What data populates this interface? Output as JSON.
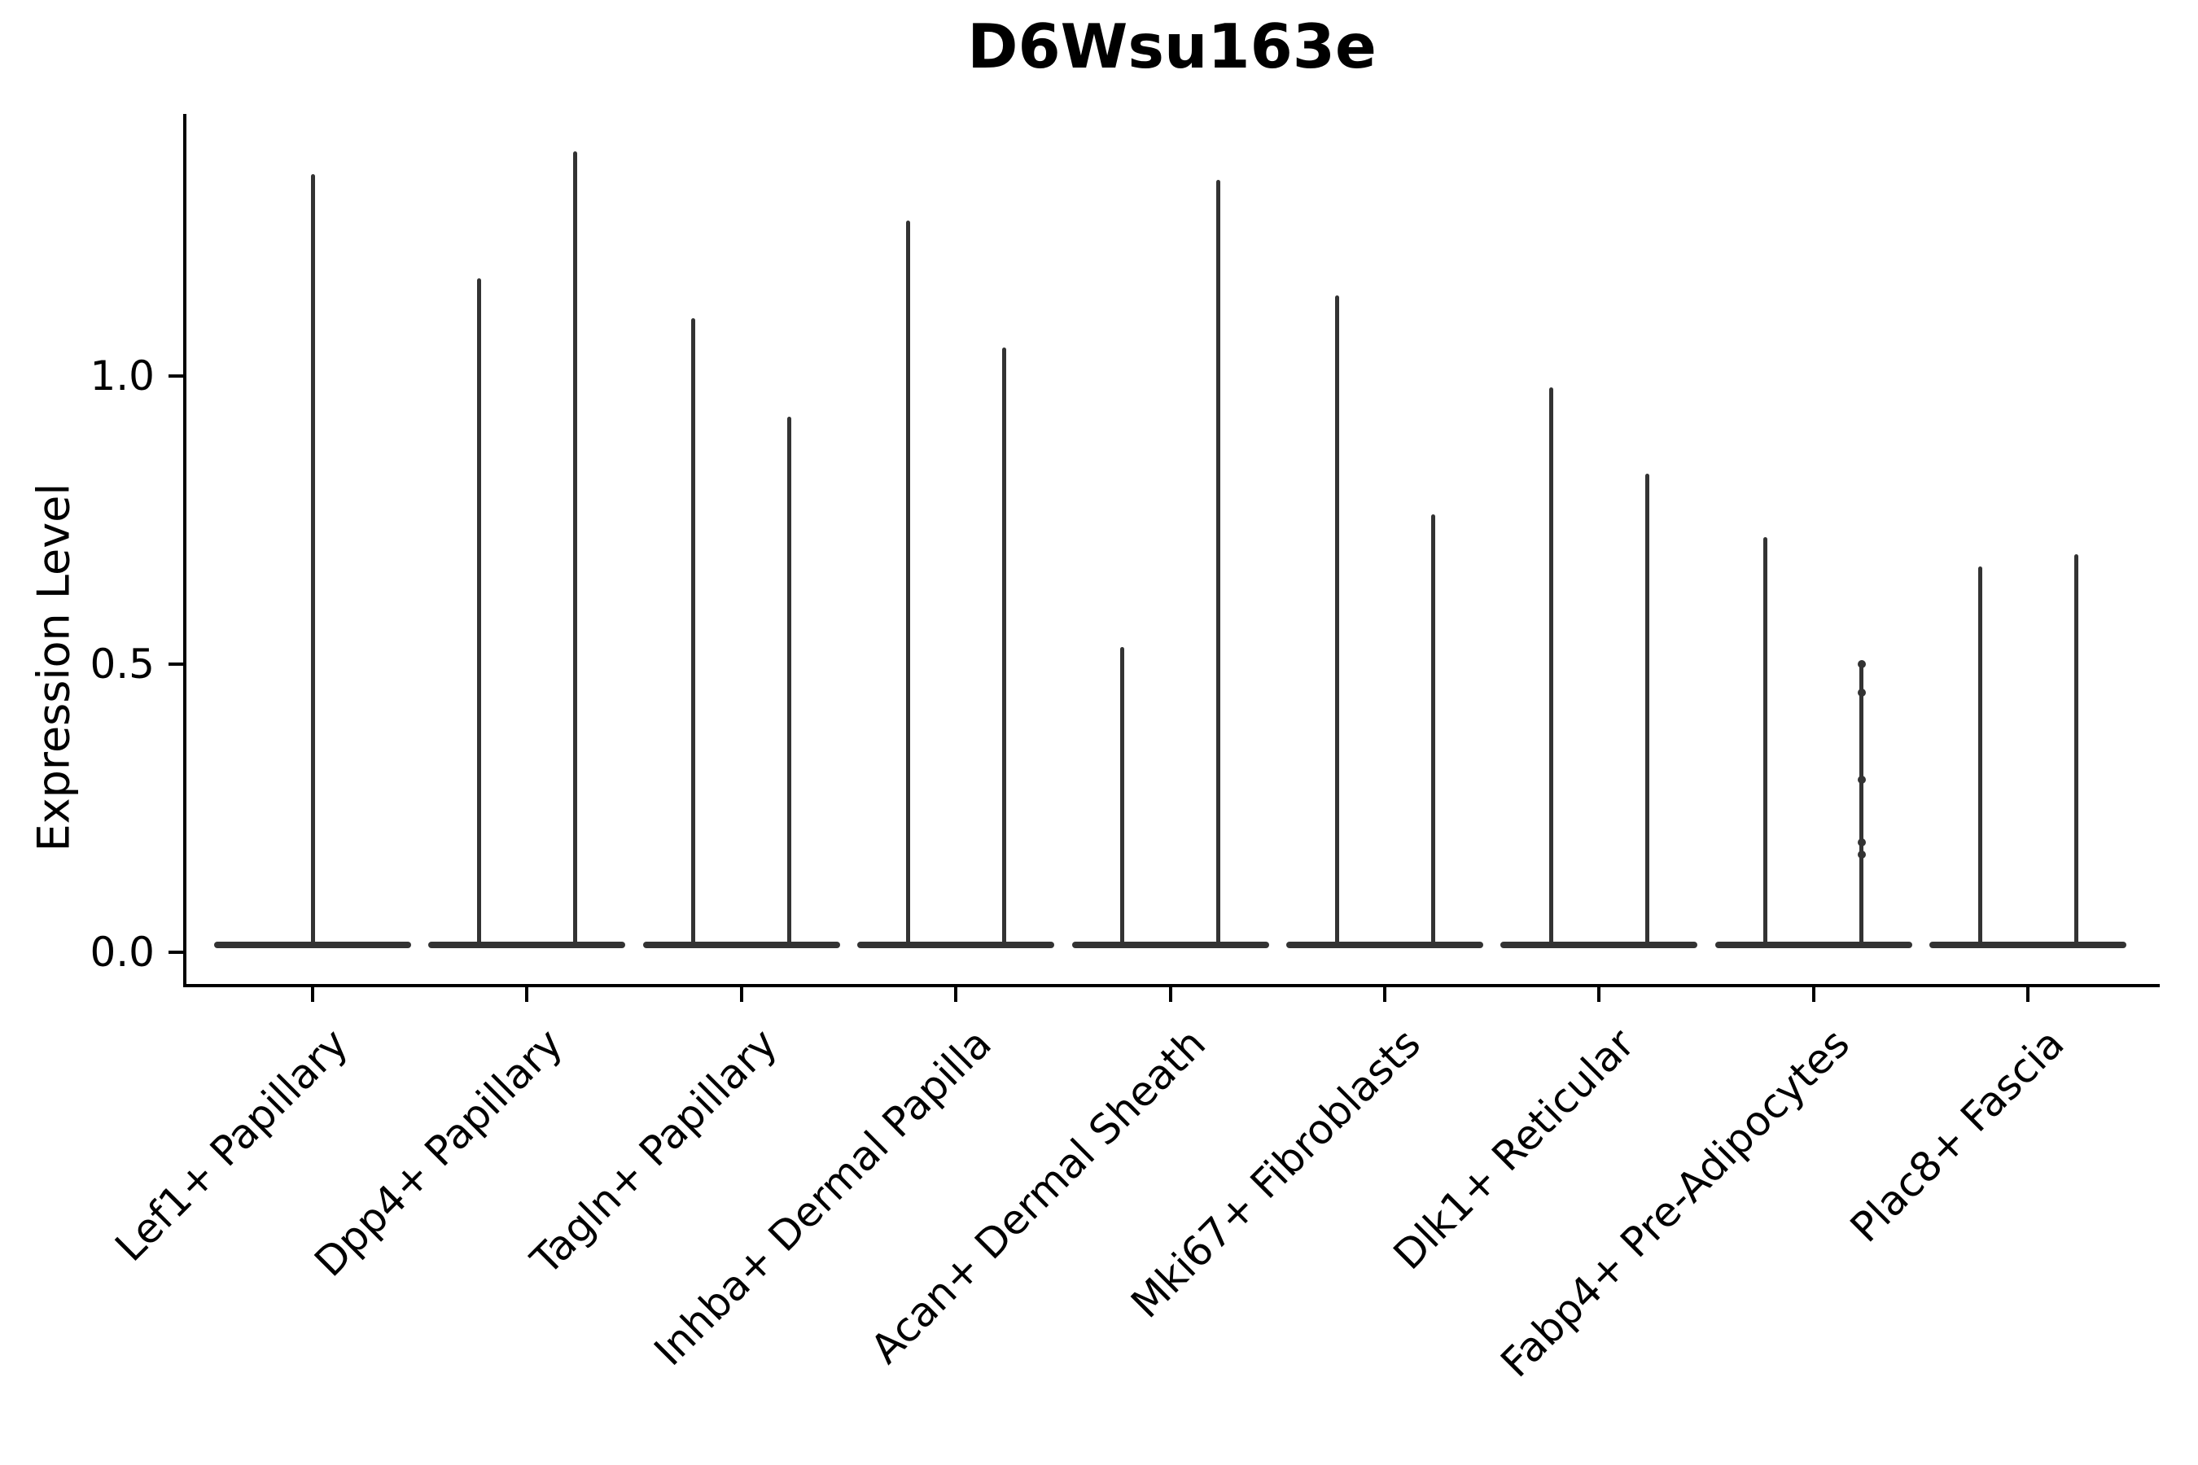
{
  "chart_data": {
    "type": "violin",
    "title": "D6Wsu163e",
    "ylabel": "Expression Level",
    "xlabel": "",
    "yticks": [
      {
        "label": "1.0",
        "value": 1.0
      },
      {
        "label": "0.5",
        "value": 0.5
      },
      {
        "label": "0.0",
        "value": 0.0
      }
    ],
    "ylim": [
      -0.06,
      1.46
    ],
    "grid": false,
    "legend": "none",
    "categories": [
      {
        "label": "Lef1+ Papillary",
        "violins": [
          {
            "side": "center",
            "max": 1.35
          }
        ]
      },
      {
        "label": "Dpp4+ Papillary",
        "violins": [
          {
            "side": "left",
            "max": 1.17
          },
          {
            "side": "right",
            "max": 1.39
          }
        ]
      },
      {
        "label": "Tagln+ Papillary",
        "violins": [
          {
            "side": "left",
            "max": 1.1
          },
          {
            "side": "right",
            "max": 0.93
          }
        ]
      },
      {
        "label": "Inhba+ Dermal Papilla",
        "violins": [
          {
            "side": "left",
            "max": 1.27
          },
          {
            "side": "right",
            "max": 1.05
          }
        ]
      },
      {
        "label": "Acan+ Dermal Sheath",
        "violins": [
          {
            "side": "left",
            "max": 0.53
          },
          {
            "side": "right",
            "max": 1.34
          }
        ]
      },
      {
        "label": "Mki67+ Fibroblasts",
        "violins": [
          {
            "side": "left",
            "max": 1.14
          },
          {
            "side": "right",
            "max": 0.76
          }
        ]
      },
      {
        "label": "Dlk1+ Reticular",
        "violins": [
          {
            "side": "left",
            "max": 0.98
          },
          {
            "side": "right",
            "max": 0.83
          }
        ]
      },
      {
        "label": "Fabp4+ Pre-Adipocytes",
        "violins": [
          {
            "side": "left",
            "max": 0.72
          },
          {
            "side": "right",
            "max": 0.5
          }
        ],
        "dots": {
          "side": "right",
          "values": [
            0.5,
            0.45,
            0.3,
            0.19,
            0.17
          ]
        }
      },
      {
        "label": "Plac8+ Fascia",
        "violins": [
          {
            "side": "left",
            "max": 0.67
          },
          {
            "side": "right",
            "max": 0.69
          }
        ]
      }
    ],
    "baseline_value": 0.0,
    "colors": {
      "violin": "#333333",
      "axis": "#000000",
      "text": "#000000",
      "background": "#ffffff"
    }
  }
}
